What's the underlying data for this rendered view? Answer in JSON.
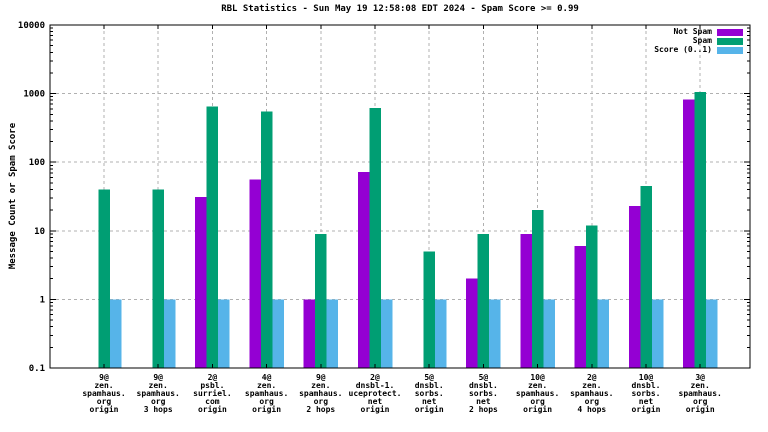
{
  "chart": {
    "title": "RBL Statistics - Sun May 19 12:58:08 EDT 2024 - Spam Score >= 0.99",
    "ylabel": "Message Count or Spam Score"
  },
  "legend": {
    "items": [
      {
        "label": "Not Spam",
        "color": "#9400d3"
      },
      {
        "label": "Spam",
        "color": "#009e73"
      },
      {
        "label": "Score (0..1)",
        "color": "#56b4e9"
      }
    ]
  },
  "colors": {
    "not_spam": "#9400d3",
    "spam": "#009e73",
    "score": "#56b4e9",
    "grid": "#b0b0b0",
    "border": "#000000",
    "background": "#ffffff"
  },
  "chart_data": {
    "type": "bar",
    "title": "RBL Statistics - Sun May 19 12:58:08 EDT 2024 - Spam Score >= 0.99",
    "xlabel": "",
    "ylabel": "Message Count or Spam Score",
    "y_scale": "log10",
    "ylim": [
      0.1,
      10000
    ],
    "ytick_labels": [
      "0.1",
      "1",
      "10",
      "100",
      "1000",
      "10000"
    ],
    "grid": true,
    "legend_position": "top-right-inside",
    "categories": [
      "9@zen.spamhaus.org origin",
      "9@zen.spamhaus.org 3 hops",
      "2@psbl.surriel.com origin",
      "4@zen.spamhaus.org origin",
      "9@zen.spamhaus.org 2 hops",
      "2@dnsbl-1.uceprotect.net origin",
      "5@dnsbl.sorbs.net origin",
      "5@dnsbl.sorbs.net 2 hops",
      "10@zen.spamhaus.org origin",
      "2@zen.spamhaus.org 4 hops",
      "10@dnsbl.sorbs.net origin",
      "3@zen.spamhaus.org origin"
    ],
    "category_lines": [
      [
        "9@",
        "zen.",
        "spamhaus.",
        "org",
        "origin"
      ],
      [
        "9@",
        "zen.",
        "spamhaus.",
        "org",
        "3 hops"
      ],
      [
        "2@",
        "psbl.",
        "surriel.",
        "com",
        "origin"
      ],
      [
        "4@",
        "zen.",
        "spamhaus.",
        "org",
        "origin"
      ],
      [
        "9@",
        "zen.",
        "spamhaus.",
        "org",
        "2 hops"
      ],
      [
        "2@",
        "dnsbl-1.",
        "uceprotect.",
        "net",
        "origin"
      ],
      [
        "5@",
        "dnsbl.",
        "sorbs.",
        "net",
        "origin"
      ],
      [
        "5@",
        "dnsbl.",
        "sorbs.",
        "net",
        "2 hops"
      ],
      [
        "10@",
        "zen.",
        "spamhaus.",
        "org",
        "origin"
      ],
      [
        "2@",
        "zen.",
        "spamhaus.",
        "org",
        "4 hops"
      ],
      [
        "10@",
        "dnsbl.",
        "sorbs.",
        "net",
        "origin"
      ],
      [
        "3@",
        "zen.",
        "spamhaus.",
        "org",
        "origin"
      ]
    ],
    "series": [
      {
        "name": "Not Spam",
        "color": "#9400d3",
        "values": [
          null,
          null,
          31,
          56,
          1,
          72,
          null,
          2,
          9,
          6,
          23,
          820
        ]
      },
      {
        "name": "Spam",
        "color": "#009e73",
        "values": [
          40,
          40,
          650,
          550,
          9,
          620,
          5,
          9,
          20,
          12,
          45,
          1050
        ]
      },
      {
        "name": "Score (0..1)",
        "color": "#56b4e9",
        "values": [
          1,
          1,
          1,
          1,
          1,
          1,
          1,
          1,
          1,
          1,
          1,
          1
        ]
      }
    ]
  }
}
